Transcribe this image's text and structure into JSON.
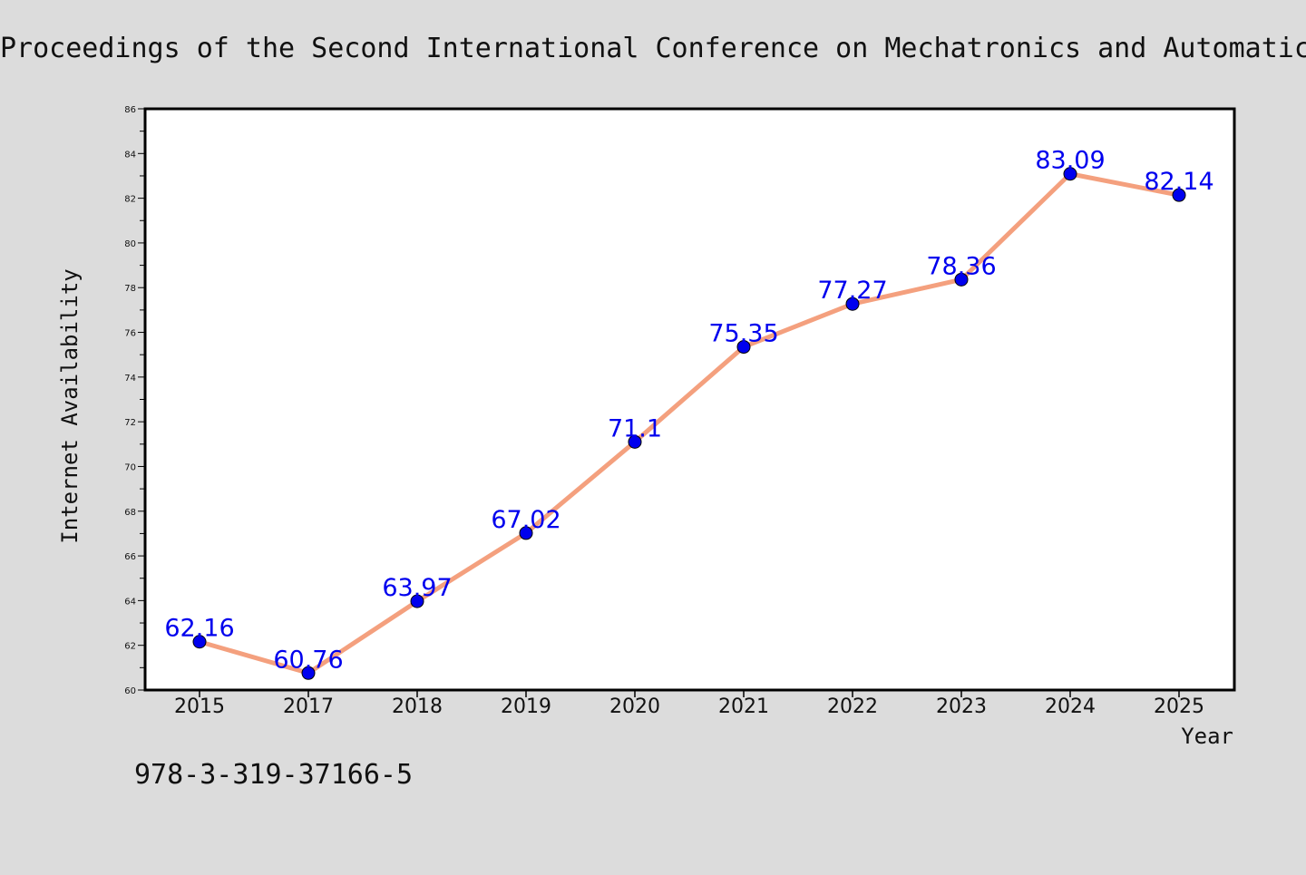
{
  "chart_data": {
    "type": "line",
    "title": "Proceedings of the Second International Conference on Mechatronics and Automatic",
    "xlabel": "Year",
    "ylabel": "Internet Availability",
    "footer_text": "978-3-319-37166-5",
    "categories": [
      "2015",
      "2017",
      "2018",
      "2019",
      "2020",
      "2021",
      "2022",
      "2023",
      "2024",
      "2025"
    ],
    "values": [
      62.16,
      60.76,
      63.97,
      67.02,
      71.1,
      75.35,
      77.27,
      78.36,
      83.09,
      82.14
    ],
    "value_labels": [
      "62.16",
      "60.76",
      "63.97",
      "67.02",
      "71.1",
      "75.35",
      "77.27",
      "78.36",
      "83.09",
      "82.14"
    ],
    "ylim": [
      60,
      86
    ],
    "yticks": [
      60,
      62,
      64,
      66,
      68,
      70,
      72,
      74,
      76,
      78,
      80,
      82,
      84,
      86
    ],
    "ytick_labels": [
      "60",
      "62",
      "64",
      "66",
      "68",
      "70",
      "72",
      "74",
      "76",
      "78",
      "80",
      "82",
      "84",
      "86"
    ],
    "grid": false,
    "legend": "none",
    "colors": {
      "line": "#f4a07e",
      "marker": "#0000ee",
      "label": "#0000ee",
      "background": "#dcdcdc",
      "plot_background": "#ffffff"
    }
  }
}
